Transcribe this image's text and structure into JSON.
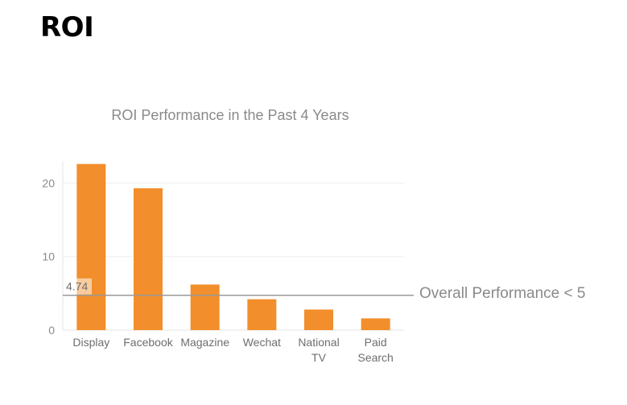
{
  "page": {
    "heading": "ROI"
  },
  "chart_data": {
    "type": "bar",
    "title": "ROI Performance in the Past 4 Years",
    "categories": [
      [
        "Display"
      ],
      [
        "Facebook"
      ],
      [
        "Magazine"
      ],
      [
        "Wechat"
      ],
      [
        "National",
        "TV"
      ],
      [
        "Paid",
        "Search"
      ]
    ],
    "values": [
      22.6,
      19.3,
      6.2,
      4.2,
      2.8,
      1.6
    ],
    "y_ticks": [
      0,
      10,
      20
    ],
    "ylim": [
      0,
      23
    ],
    "grid": true,
    "reference_line": {
      "value": 4.74,
      "value_label": "4.74",
      "label": "Overall Performance < 5"
    },
    "colors": {
      "bar": "#f28e2b",
      "reference_line": "#999999",
      "grid": "#eeeeee",
      "text": "#8a8a8a"
    }
  }
}
